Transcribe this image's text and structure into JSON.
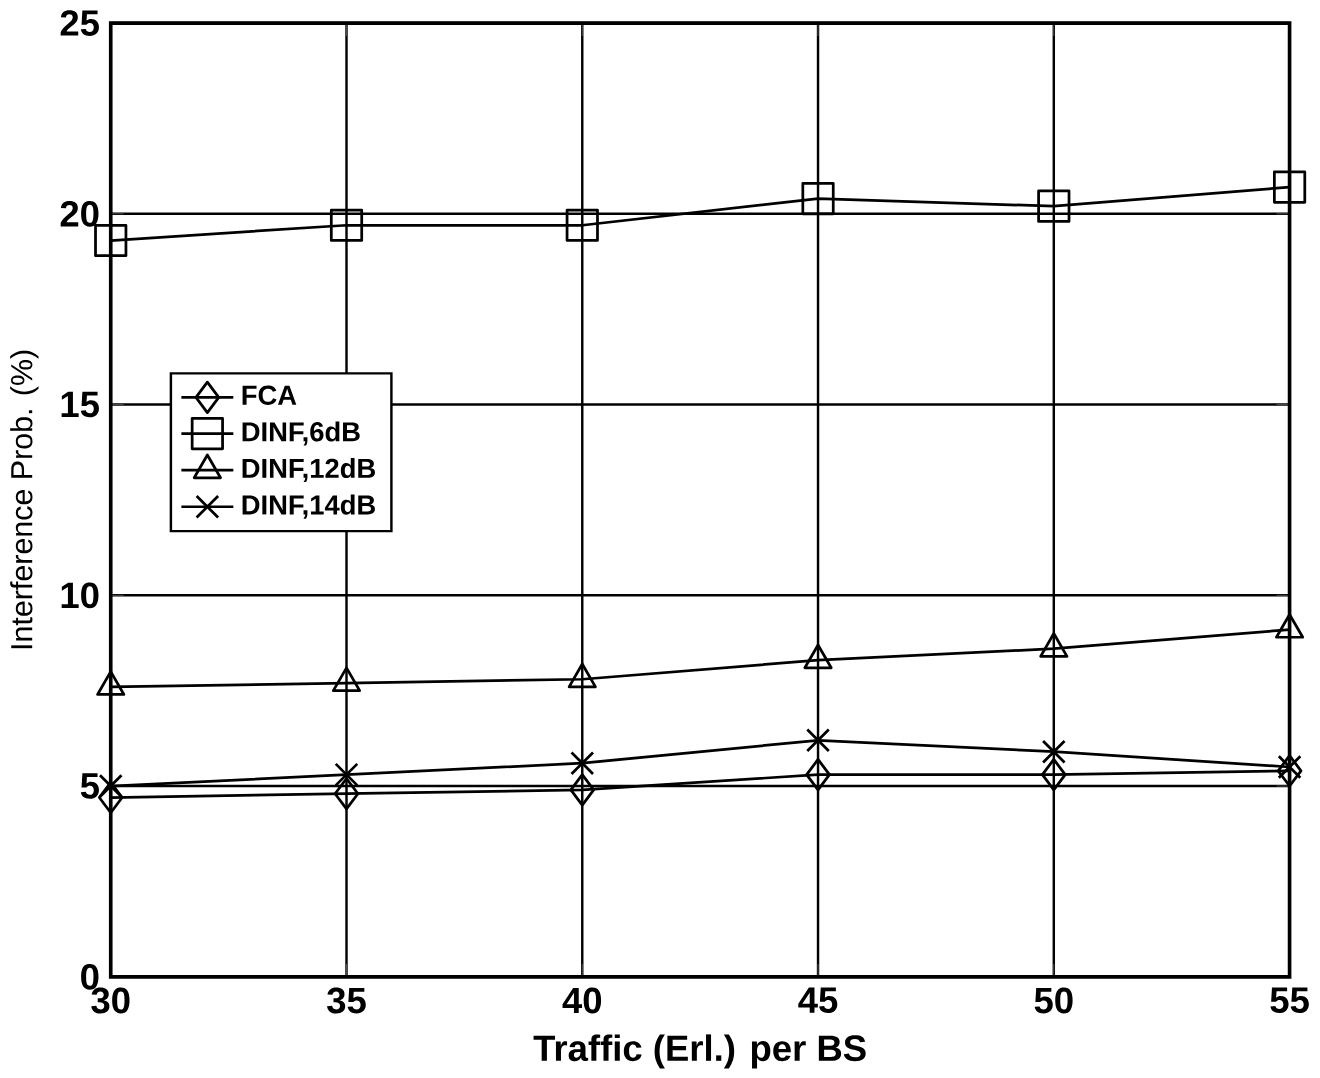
{
  "chart_data": {
    "type": "line",
    "xlabel": "Traffic (Erl.) per BS",
    "ylabel": "Interference Prob. (%)",
    "x": [
      30,
      35,
      40,
      45,
      50,
      55
    ],
    "series": [
      {
        "name": "FCA",
        "color": "#000000",
        "marker": "diamond",
        "values": [
          4.7,
          4.8,
          4.9,
          5.3,
          5.3,
          5.4
        ]
      },
      {
        "name": "DINF,6dB",
        "color": "#000000",
        "marker": "square",
        "values": [
          19.3,
          19.7,
          19.7,
          20.4,
          20.2,
          20.7
        ]
      },
      {
        "name": "DINF,12dB",
        "color": "#000000",
        "marker": "triangle",
        "values": [
          7.6,
          7.7,
          7.8,
          8.3,
          8.6,
          9.1
        ]
      },
      {
        "name": "DINF,14dB",
        "color": "#000000",
        "marker": "cross",
        "values": [
          5.0,
          5.3,
          5.6,
          6.2,
          5.9,
          5.5
        ]
      }
    ],
    "xlim": [
      30,
      55
    ],
    "xticks": [
      30,
      35,
      40,
      45,
      50,
      55
    ],
    "ylim": [
      0,
      25
    ],
    "yticks": [
      0,
      5,
      10,
      15,
      20,
      25
    ],
    "grid": true,
    "legend": "left",
    "line_style": "solid"
  }
}
